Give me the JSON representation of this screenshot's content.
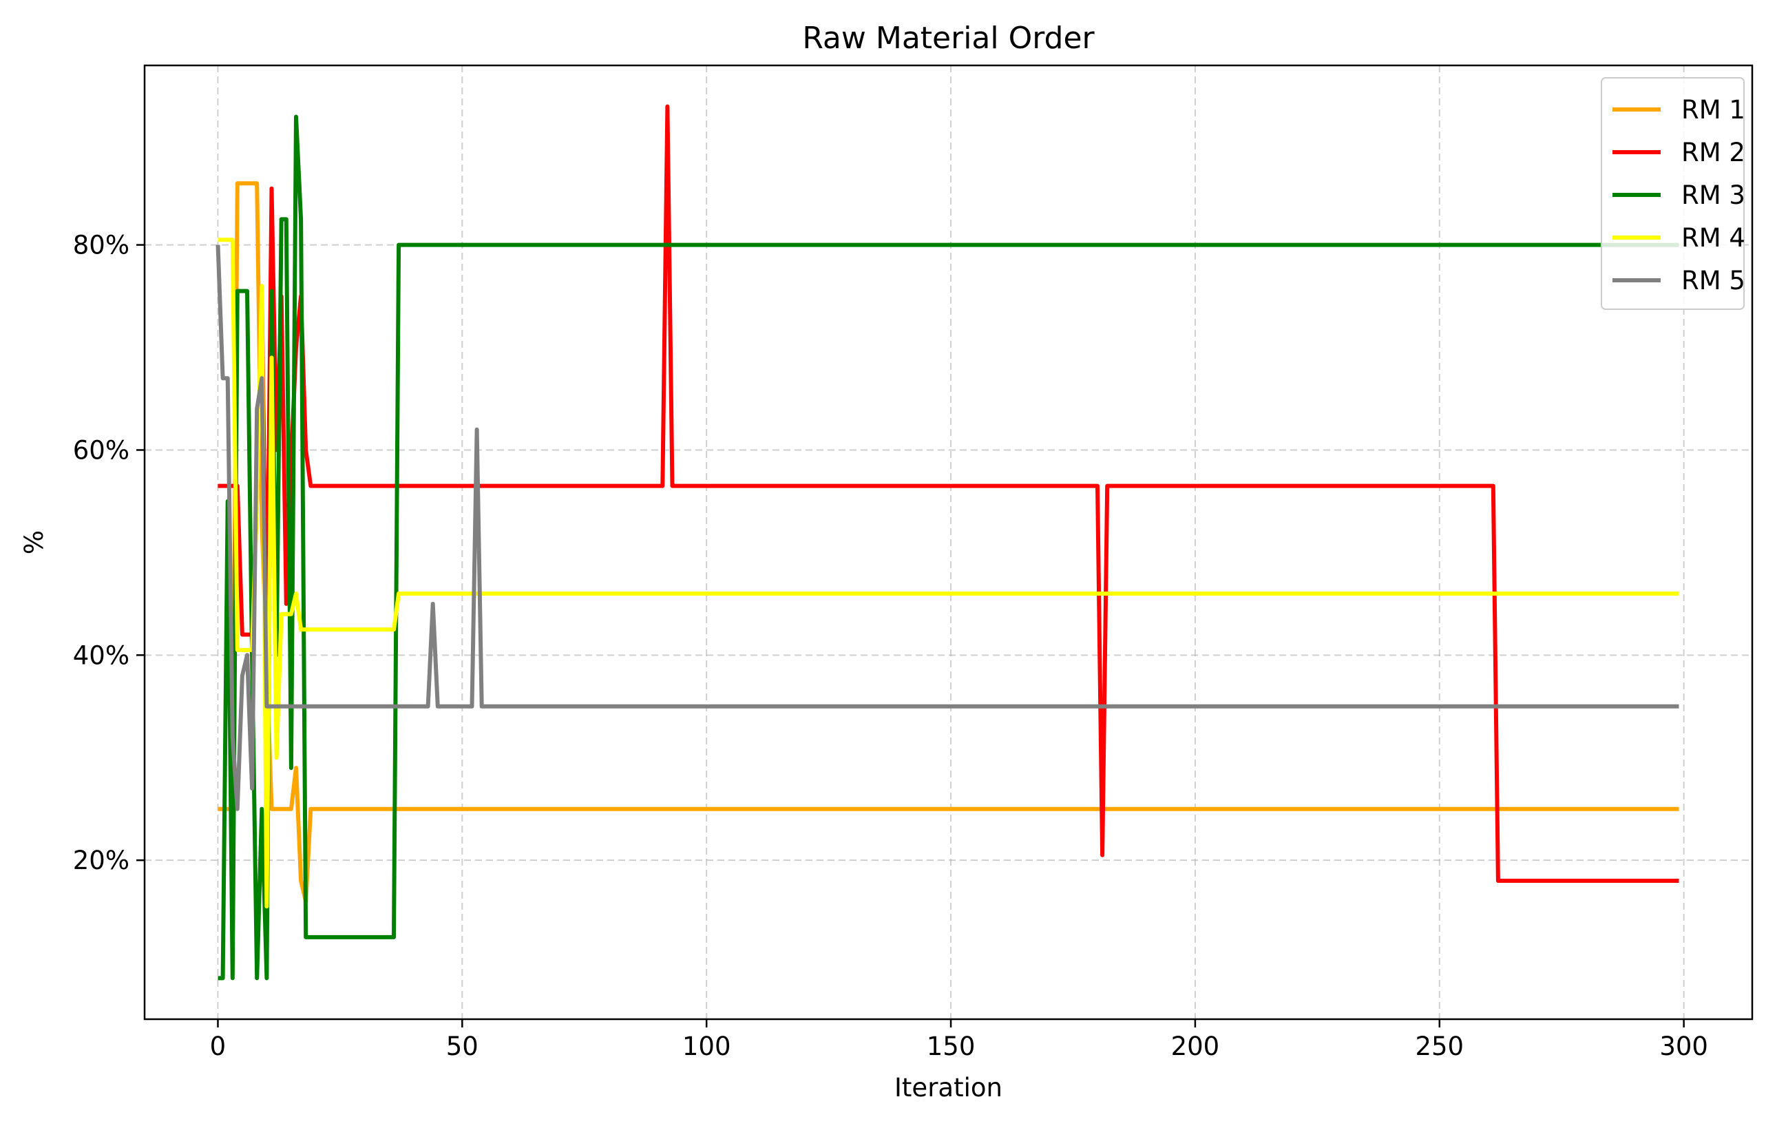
{
  "chart_data": {
    "type": "line",
    "title": "Raw Material Order",
    "xlabel": "Iteration",
    "ylabel": "%",
    "xlim": [
      -15,
      314
    ],
    "ylim": [
      4.5,
      97.5
    ],
    "xticks": [
      0,
      50,
      100,
      150,
      200,
      250,
      300
    ],
    "yticks": [
      20,
      40,
      60,
      80
    ],
    "ytick_labels": [
      "20%",
      "40%",
      "60%",
      "80%"
    ],
    "grid": true,
    "legend_position": "top-right",
    "series": [
      {
        "name": "RM 1",
        "color": "#ffa500",
        "points": [
          [
            0,
            25
          ],
          [
            3,
            25
          ],
          [
            4,
            86
          ],
          [
            8,
            86
          ],
          [
            9,
            53
          ],
          [
            11,
            25
          ],
          [
            15,
            25
          ],
          [
            16,
            29
          ],
          [
            17,
            18
          ],
          [
            18,
            16
          ],
          [
            19,
            25
          ],
          [
            299,
            25
          ]
        ]
      },
      {
        "name": "RM 2",
        "color": "#ff0000",
        "points": [
          [
            0,
            56.5
          ],
          [
            4,
            56.5
          ],
          [
            5,
            42
          ],
          [
            7,
            42
          ],
          [
            8,
            55
          ],
          [
            9,
            75
          ],
          [
            10,
            40
          ],
          [
            11,
            85.5
          ],
          [
            12,
            60
          ],
          [
            13,
            75
          ],
          [
            14,
            45
          ],
          [
            15,
            59
          ],
          [
            16,
            70
          ],
          [
            17,
            75
          ],
          [
            18,
            60
          ],
          [
            19,
            56.5
          ],
          [
            91,
            56.5
          ],
          [
            92,
            93.5
          ],
          [
            93,
            56.5
          ],
          [
            180,
            56.5
          ],
          [
            181,
            20.5
          ],
          [
            182,
            56.5
          ],
          [
            261,
            56.5
          ],
          [
            262,
            18
          ],
          [
            299,
            18
          ]
        ]
      },
      {
        "name": "RM 3",
        "color": "#008000",
        "points": [
          [
            0,
            8.5
          ],
          [
            1,
            8.5
          ],
          [
            2,
            55
          ],
          [
            3,
            8.5
          ],
          [
            4,
            75.5
          ],
          [
            6,
            75.5
          ],
          [
            7,
            40
          ],
          [
            8,
            8.5
          ],
          [
            9,
            25
          ],
          [
            10,
            8.5
          ],
          [
            11,
            75.5
          ],
          [
            12,
            40
          ],
          [
            13,
            82.5
          ],
          [
            14,
            82.5
          ],
          [
            15,
            29
          ],
          [
            16,
            92.5
          ],
          [
            17,
            82.5
          ],
          [
            18,
            12.5
          ],
          [
            36,
            12.5
          ],
          [
            37,
            80
          ],
          [
            299,
            80
          ]
        ]
      },
      {
        "name": "RM 4",
        "color": "#ffff00",
        "points": [
          [
            0,
            80.5
          ],
          [
            3,
            80.5
          ],
          [
            4,
            40.5
          ],
          [
            7,
            40.5
          ],
          [
            8,
            55
          ],
          [
            9,
            76
          ],
          [
            10,
            15.5
          ],
          [
            11,
            69
          ],
          [
            12,
            30
          ],
          [
            13,
            44
          ],
          [
            15,
            44
          ],
          [
            16,
            46
          ],
          [
            17,
            42.5
          ],
          [
            36,
            42.5
          ],
          [
            37,
            46
          ],
          [
            299,
            46
          ]
        ]
      },
      {
        "name": "RM 5",
        "color": "#808080",
        "points": [
          [
            0,
            80
          ],
          [
            1,
            67
          ],
          [
            2,
            67
          ],
          [
            3,
            32
          ],
          [
            4,
            25
          ],
          [
            5,
            38
          ],
          [
            6,
            40
          ],
          [
            7,
            27
          ],
          [
            8,
            64
          ],
          [
            9,
            67
          ],
          [
            10,
            35
          ],
          [
            43,
            35
          ],
          [
            44,
            45
          ],
          [
            45,
            35
          ],
          [
            52,
            35
          ],
          [
            53,
            62
          ],
          [
            54,
            35
          ],
          [
            299,
            35
          ]
        ]
      }
    ]
  }
}
